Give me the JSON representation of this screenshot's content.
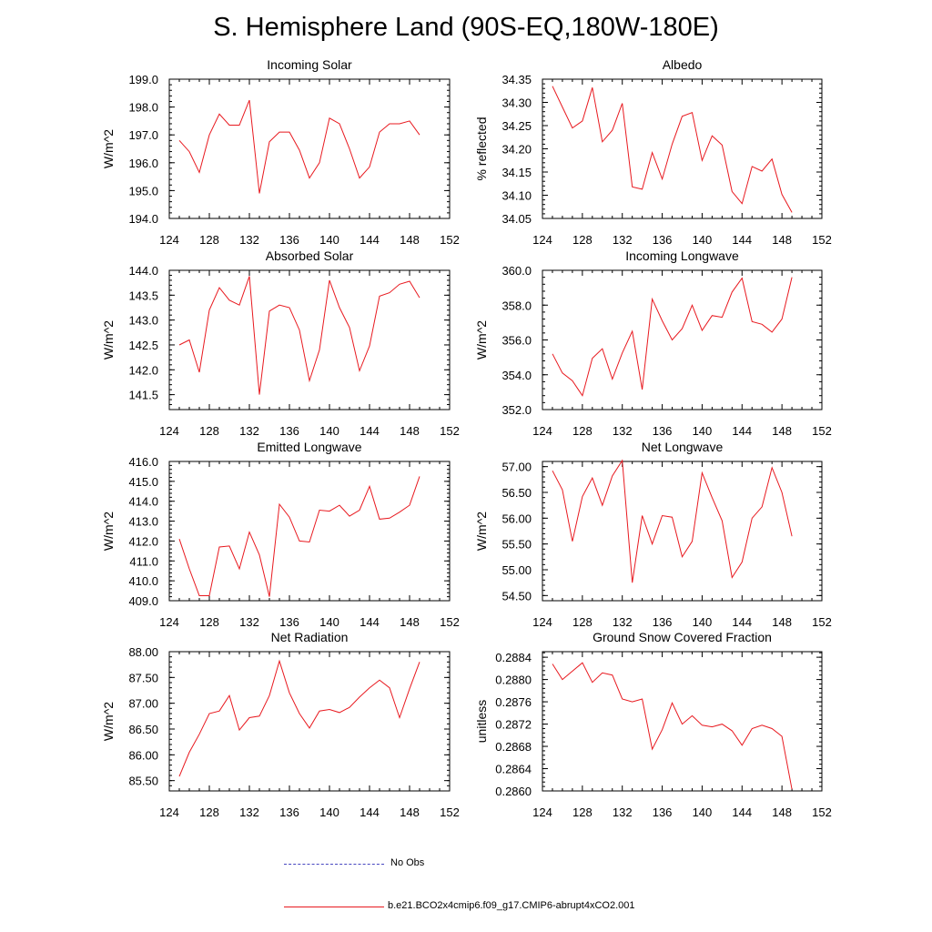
{
  "title": "S. Hemisphere Land (90S-EQ,180W-180E)",
  "colors": {
    "model": "#e8191f",
    "obs": "#4747c0",
    "axis": "#000000"
  },
  "legend": {
    "obs_label": "No Obs",
    "model_label": "b.e21.BCO2x4cmip6.f09_g17.CMIP6-abrupt4xCO2.001"
  },
  "chart_data": [
    {
      "type": "line",
      "title": "Incoming Solar",
      "xlabel": "",
      "ylabel": "W/m^2",
      "xlim": [
        124,
        152
      ],
      "ylim": [
        194.0,
        199.0
      ],
      "xticks": [
        124,
        128,
        132,
        136,
        140,
        144,
        148,
        152
      ],
      "yticks": [
        "194.0",
        "195.0",
        "196.0",
        "197.0",
        "198.0",
        "199.0"
      ],
      "x": [
        125,
        126,
        127,
        128,
        129,
        130,
        131,
        132,
        133,
        134,
        135,
        136,
        137,
        138,
        139,
        140,
        141,
        142,
        143,
        144,
        145,
        146,
        147,
        148,
        149
      ],
      "series": [
        {
          "name": "b.e21.BCO2x4cmip6.f09_g17.CMIP6-abrupt4xCO2.001",
          "values": [
            196.8,
            196.4,
            195.65,
            197.0,
            197.75,
            197.35,
            197.35,
            198.25,
            194.9,
            196.75,
            197.1,
            197.1,
            196.45,
            195.45,
            196.0,
            197.6,
            197.4,
            196.5,
            195.45,
            195.85,
            197.1,
            197.4,
            197.4,
            197.5,
            197.0
          ]
        }
      ]
    },
    {
      "type": "line",
      "title": "Albedo",
      "xlabel": "",
      "ylabel": "% reflected",
      "xlim": [
        124,
        152
      ],
      "ylim": [
        34.05,
        34.35
      ],
      "xticks": [
        124,
        128,
        132,
        136,
        140,
        144,
        148,
        152
      ],
      "yticks": [
        "34.05",
        "34.10",
        "34.15",
        "34.20",
        "34.25",
        "34.30",
        "34.35"
      ],
      "x": [
        125,
        126,
        127,
        128,
        129,
        130,
        131,
        132,
        133,
        134,
        135,
        136,
        137,
        138,
        139,
        140,
        141,
        142,
        143,
        144,
        145,
        146,
        147,
        148,
        149
      ],
      "series": [
        {
          "name": "b.e21.BCO2x4cmip6.f09_g17.CMIP6-abrupt4xCO2.001",
          "values": [
            34.335,
            34.29,
            34.245,
            34.26,
            34.332,
            34.215,
            34.24,
            34.298,
            34.118,
            34.113,
            34.192,
            34.135,
            34.21,
            34.27,
            34.278,
            34.175,
            34.228,
            34.208,
            34.108,
            34.082,
            34.162,
            34.152,
            34.178,
            34.102,
            34.063
          ]
        }
      ]
    },
    {
      "type": "line",
      "title": "Absorbed Solar",
      "xlabel": "",
      "ylabel": "W/m^2",
      "xlim": [
        124,
        152
      ],
      "ylim": [
        141.2,
        144.0
      ],
      "xticks": [
        124,
        128,
        132,
        136,
        140,
        144,
        148,
        152
      ],
      "yticks": [
        "141.5",
        "142.0",
        "142.5",
        "143.0",
        "143.5",
        "144.0"
      ],
      "x": [
        125,
        126,
        127,
        128,
        129,
        130,
        131,
        132,
        133,
        134,
        135,
        136,
        137,
        138,
        139,
        140,
        141,
        142,
        143,
        144,
        145,
        146,
        147,
        148,
        149
      ],
      "series": [
        {
          "name": "b.e21.BCO2x4cmip6.f09_g17.CMIP6-abrupt4xCO2.001",
          "values": [
            142.5,
            142.6,
            141.95,
            143.2,
            143.65,
            143.4,
            143.3,
            143.88,
            141.5,
            143.18,
            143.3,
            143.25,
            142.8,
            141.78,
            142.4,
            143.8,
            143.25,
            142.85,
            141.98,
            142.48,
            143.48,
            143.55,
            143.72,
            143.78,
            143.45
          ]
        }
      ]
    },
    {
      "type": "line",
      "title": "Incoming Longwave",
      "xlabel": "",
      "ylabel": "W/m^2",
      "xlim": [
        124,
        152
      ],
      "ylim": [
        352.0,
        360.0
      ],
      "xticks": [
        124,
        128,
        132,
        136,
        140,
        144,
        148,
        152
      ],
      "yticks": [
        "352.0",
        "354.0",
        "356.0",
        "358.0",
        "360.0"
      ],
      "x": [
        125,
        126,
        127,
        128,
        129,
        130,
        131,
        132,
        133,
        134,
        135,
        136,
        137,
        138,
        139,
        140,
        141,
        142,
        143,
        144,
        145,
        146,
        147,
        148,
        149
      ],
      "series": [
        {
          "name": "b.e21.BCO2x4cmip6.f09_g17.CMIP6-abrupt4xCO2.001",
          "values": [
            355.2,
            354.1,
            353.65,
            352.8,
            354.95,
            355.5,
            353.75,
            355.25,
            356.5,
            353.15,
            358.35,
            357.1,
            356.0,
            356.65,
            358.0,
            356.55,
            357.4,
            357.3,
            358.75,
            359.55,
            357.05,
            356.9,
            356.45,
            357.2,
            359.6
          ]
        }
      ]
    },
    {
      "type": "line",
      "title": "Emitted Longwave",
      "xlabel": "",
      "ylabel": "W/m^2",
      "xlim": [
        124,
        152
      ],
      "ylim": [
        409.0,
        416.0
      ],
      "xticks": [
        124,
        128,
        132,
        136,
        140,
        144,
        148,
        152
      ],
      "yticks": [
        "409.0",
        "410.0",
        "411.0",
        "412.0",
        "413.0",
        "414.0",
        "415.0",
        "416.0"
      ],
      "x": [
        125,
        126,
        127,
        128,
        129,
        130,
        131,
        132,
        133,
        134,
        135,
        136,
        137,
        138,
        139,
        140,
        141,
        142,
        143,
        144,
        145,
        146,
        147,
        148,
        149
      ],
      "series": [
        {
          "name": "b.e21.BCO2x4cmip6.f09_g17.CMIP6-abrupt4xCO2.001",
          "values": [
            412.1,
            410.6,
            409.25,
            409.25,
            411.7,
            411.75,
            410.6,
            412.45,
            411.3,
            409.2,
            413.85,
            413.2,
            412.0,
            411.95,
            413.55,
            413.5,
            413.8,
            413.25,
            413.55,
            414.75,
            413.1,
            413.15,
            413.45,
            413.8,
            415.25
          ]
        }
      ]
    },
    {
      "type": "line",
      "title": "Net Longwave",
      "xlabel": "",
      "ylabel": "W/m^2",
      "xlim": [
        124,
        152
      ],
      "ylim": [
        54.4,
        57.1
      ],
      "xticks": [
        124,
        128,
        132,
        136,
        140,
        144,
        148,
        152
      ],
      "yticks": [
        "54.50",
        "55.00",
        "55.50",
        "56.00",
        "56.50",
        "57.00"
      ],
      "x": [
        125,
        126,
        127,
        128,
        129,
        130,
        131,
        132,
        133,
        134,
        135,
        136,
        137,
        138,
        139,
        140,
        141,
        142,
        143,
        144,
        145,
        146,
        147,
        148,
        149
      ],
      "series": [
        {
          "name": "b.e21.BCO2x4cmip6.f09_g17.CMIP6-abrupt4xCO2.001",
          "values": [
            56.92,
            56.55,
            55.55,
            56.42,
            56.78,
            56.25,
            56.82,
            57.12,
            54.75,
            56.05,
            55.5,
            56.05,
            56.02,
            55.25,
            55.55,
            56.88,
            56.4,
            55.95,
            54.85,
            55.15,
            56.0,
            56.22,
            56.98,
            56.5,
            55.65
          ]
        }
      ]
    },
    {
      "type": "line",
      "title": "Net Radiation",
      "xlabel": "",
      "ylabel": "W/m^2",
      "xlim": [
        124,
        152
      ],
      "ylim": [
        85.3,
        88.0
      ],
      "xticks": [
        124,
        128,
        132,
        136,
        140,
        144,
        148,
        152
      ],
      "yticks": [
        "85.50",
        "86.00",
        "86.50",
        "87.00",
        "87.50",
        "88.00"
      ],
      "x": [
        125,
        126,
        127,
        128,
        129,
        130,
        131,
        132,
        133,
        134,
        135,
        136,
        137,
        138,
        139,
        140,
        141,
        142,
        143,
        144,
        145,
        146,
        147,
        148,
        149
      ],
      "series": [
        {
          "name": "b.e21.BCO2x4cmip6.f09_g17.CMIP6-abrupt4xCO2.001",
          "values": [
            85.58,
            86.05,
            86.4,
            86.8,
            86.85,
            87.15,
            86.48,
            86.72,
            86.75,
            87.15,
            87.82,
            87.2,
            86.8,
            86.52,
            86.85,
            86.88,
            86.82,
            86.92,
            87.12,
            87.3,
            87.45,
            87.3,
            86.72,
            87.28,
            87.8
          ]
        }
      ]
    },
    {
      "type": "line",
      "title": "Ground Snow Covered Fraction",
      "xlabel": "",
      "ylabel": "unitless",
      "xlim": [
        124,
        152
      ],
      "ylim": [
        0.286,
        0.2885
      ],
      "xticks": [
        124,
        128,
        132,
        136,
        140,
        144,
        148,
        152
      ],
      "yticks": [
        "0.2860",
        "0.2864",
        "0.2868",
        "0.2872",
        "0.2876",
        "0.2880",
        "0.2884"
      ],
      "x": [
        125,
        126,
        127,
        128,
        129,
        130,
        131,
        132,
        133,
        134,
        135,
        136,
        137,
        138,
        139,
        140,
        141,
        142,
        143,
        144,
        145,
        146,
        147,
        148,
        149
      ],
      "series": [
        {
          "name": "b.e21.BCO2x4cmip6.f09_g17.CMIP6-abrupt4xCO2.001",
          "values": [
            0.28828,
            0.288,
            0.28815,
            0.2883,
            0.28795,
            0.28812,
            0.28808,
            0.28765,
            0.2876,
            0.28765,
            0.28675,
            0.2871,
            0.28758,
            0.2872,
            0.28735,
            0.28718,
            0.28715,
            0.2872,
            0.28708,
            0.28682,
            0.28712,
            0.28718,
            0.28712,
            0.28698,
            0.28603
          ]
        }
      ]
    }
  ]
}
